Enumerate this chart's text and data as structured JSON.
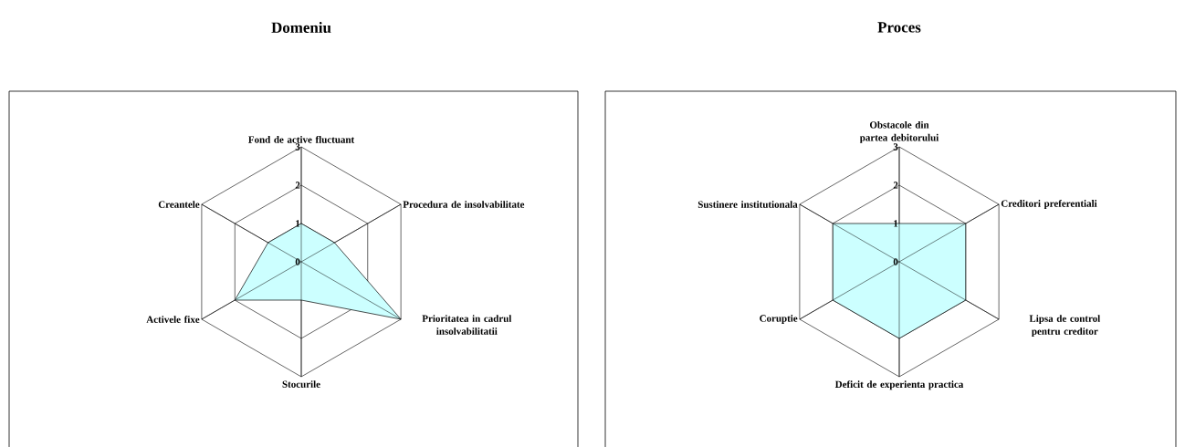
{
  "chart_data": [
    {
      "type": "radar",
      "title": "Domeniu",
      "categories": [
        "Fond de active fluctuant",
        "Procedura de insolvabilitate",
        "Prioritatea in cadrul insolvabilitatii",
        "Stocurile",
        "Activele fixe",
        "Creantele"
      ],
      "series": [
        {
          "color": "#ccffff",
          "values": [
            1,
            1,
            3,
            1,
            2,
            1
          ]
        }
      ],
      "ylim": [
        0,
        3
      ],
      "yticks": [
        0,
        1,
        2,
        3
      ]
    },
    {
      "type": "radar",
      "title": "Proces",
      "categories": [
        "Obstacole din partea debitorului",
        "Creditori preferentiali",
        "Lipsa de control pentru creditor",
        "Deficit de experienta practica",
        "Coruptie",
        "Sustinere institutionala"
      ],
      "series": [
        {
          "color": "#ccffff",
          "values": [
            1,
            2,
            2,
            2,
            2,
            2
          ]
        }
      ],
      "ylim": [
        0,
        3
      ],
      "yticks": [
        0,
        1,
        2,
        3
      ]
    }
  ]
}
